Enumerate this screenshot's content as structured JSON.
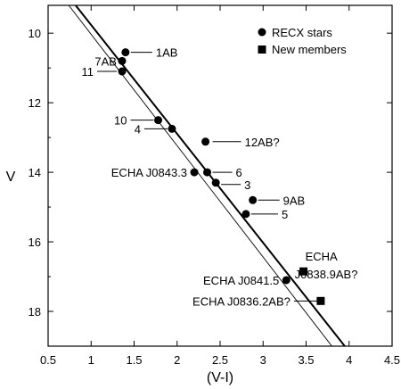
{
  "chart_data": {
    "type": "scatter",
    "title": "",
    "xlabel": "(V-I)",
    "ylabel": "V",
    "xlim": [
      0.5,
      4.5
    ],
    "ylim": [
      19.0,
      9.2
    ],
    "y_inverted": true,
    "xticks": [
      0.5,
      1,
      1.5,
      2,
      2.5,
      3,
      3.5,
      4,
      4.5
    ],
    "xtick_labels": [
      "0.5",
      "1",
      "1.5",
      "2",
      "2.5",
      "3",
      "3.5",
      "4",
      "4.5"
    ],
    "yticks": [
      10,
      12,
      14,
      16,
      18
    ],
    "ytick_labels": [
      "10",
      "12",
      "14",
      "16",
      "18"
    ],
    "grid": false,
    "legend_position": "top-right",
    "series": [
      {
        "name": "RECX stars",
        "marker": "circle",
        "points": [
          {
            "x": 1.4,
            "y": 10.55,
            "label": "1AB"
          },
          {
            "x": 1.36,
            "y": 10.8,
            "label": "7AB"
          },
          {
            "x": 1.36,
            "y": 11.1,
            "label": "11"
          },
          {
            "x": 1.78,
            "y": 12.5,
            "label": "10"
          },
          {
            "x": 1.94,
            "y": 12.75,
            "label": "4"
          },
          {
            "x": 2.33,
            "y": 13.12,
            "label": "12AB?"
          },
          {
            "x": 2.2,
            "y": 14.0,
            "label": "ECHA J0843.3"
          },
          {
            "x": 2.35,
            "y": 14.0,
            "label": "6"
          },
          {
            "x": 2.45,
            "y": 14.3,
            "label": "3"
          },
          {
            "x": 2.88,
            "y": 14.8,
            "label": "9AB"
          },
          {
            "x": 2.8,
            "y": 15.2,
            "label": "5"
          },
          {
            "x": 3.27,
            "y": 17.1,
            "label": "ECHA J0841.5"
          }
        ]
      },
      {
        "name": "New members",
        "marker": "square",
        "points": [
          {
            "x": 3.47,
            "y": 16.85,
            "label": "ECHA J0838.9AB?"
          },
          {
            "x": 3.67,
            "y": 17.7,
            "label": "ECHA J0836.2AB?"
          }
        ]
      }
    ],
    "lines": [
      {
        "style": "thick",
        "points": [
          [
            0.82,
            9.2
          ],
          [
            3.95,
            19.0
          ]
        ]
      },
      {
        "style": "thin",
        "points": [
          [
            0.74,
            9.2
          ],
          [
            3.8,
            19.0
          ]
        ]
      }
    ]
  }
}
